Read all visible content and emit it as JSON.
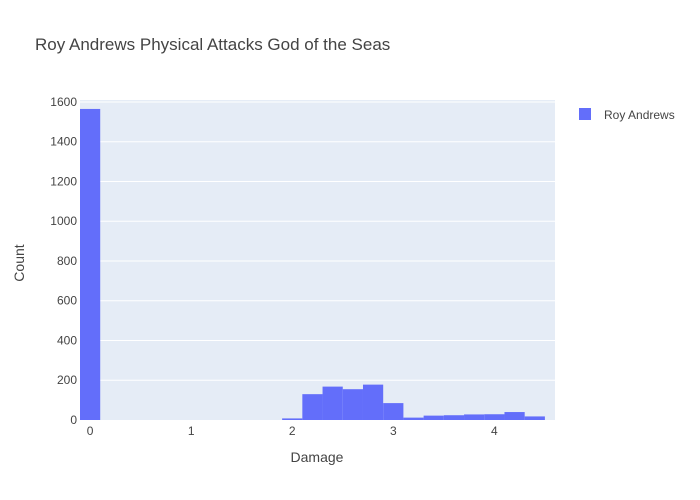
{
  "chart_data": {
    "type": "bar",
    "title": "Roy Andrews Physical Attacks God of the Seas",
    "xlabel": "Damage",
    "ylabel": "Count",
    "xlim": [
      -0.1,
      4.6
    ],
    "ylim": [
      0,
      1610
    ],
    "x_ticks": [
      0,
      1,
      2,
      3,
      4
    ],
    "y_ticks": [
      0,
      200,
      400,
      600,
      800,
      1000,
      1200,
      1400,
      1600
    ],
    "grid": true,
    "legend_position": "top-right",
    "bin_width": 0.2,
    "series": [
      {
        "name": "Roy Andrews",
        "color": "#636efa",
        "bins": [
          {
            "x0": -0.1,
            "x1": 0.1,
            "count": 1565
          },
          {
            "x0": 1.9,
            "x1": 2.1,
            "count": 8
          },
          {
            "x0": 2.1,
            "x1": 2.3,
            "count": 130
          },
          {
            "x0": 2.3,
            "x1": 2.5,
            "count": 168
          },
          {
            "x0": 2.5,
            "x1": 2.7,
            "count": 155
          },
          {
            "x0": 2.7,
            "x1": 2.9,
            "count": 178
          },
          {
            "x0": 2.9,
            "x1": 3.1,
            "count": 85
          },
          {
            "x0": 3.1,
            "x1": 3.3,
            "count": 12
          },
          {
            "x0": 3.3,
            "x1": 3.5,
            "count": 22
          },
          {
            "x0": 3.5,
            "x1": 3.7,
            "count": 24
          },
          {
            "x0": 3.7,
            "x1": 3.9,
            "count": 28
          },
          {
            "x0": 3.9,
            "x1": 4.1,
            "count": 29
          },
          {
            "x0": 4.1,
            "x1": 4.3,
            "count": 40
          },
          {
            "x0": 4.3,
            "x1": 4.5,
            "count": 18
          }
        ]
      }
    ]
  },
  "colors": {
    "plot_background": "#e5ecf6",
    "grid": "#ffffff",
    "text": "#444444"
  }
}
